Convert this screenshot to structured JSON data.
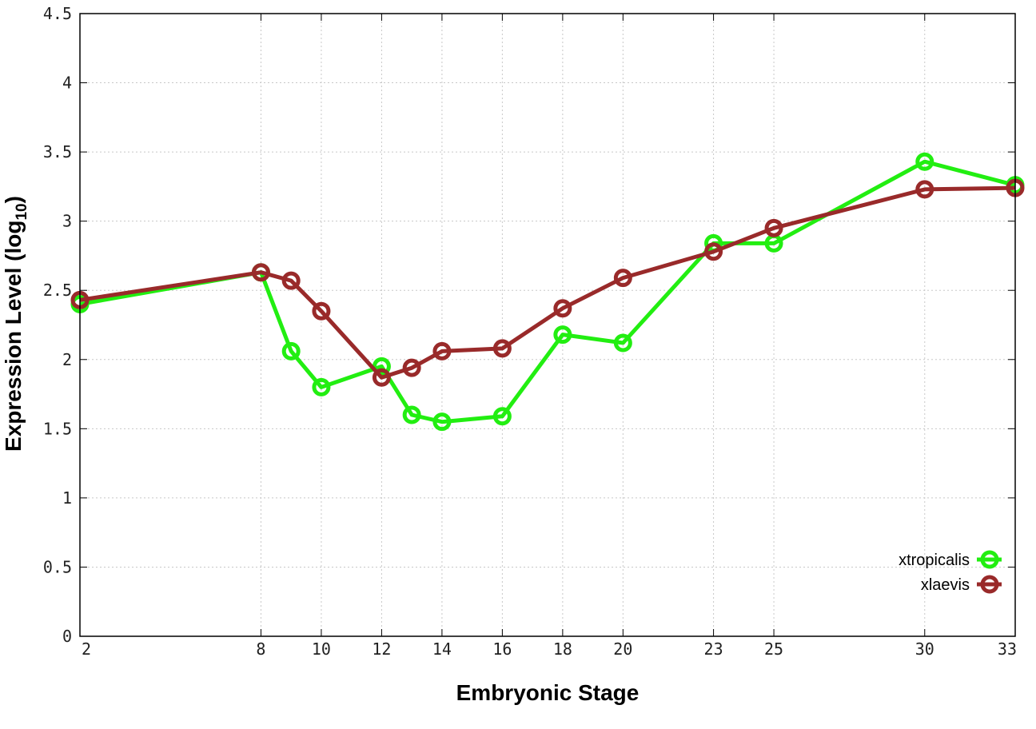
{
  "chart_data": {
    "type": "line",
    "title": "",
    "xlabel": "Embryonic Stage",
    "ylabel": {
      "text": "Expression Level (log",
      "subscript": "10",
      "suffix": ")"
    },
    "x_ticks": [
      "2",
      "8",
      "10",
      "12",
      "14",
      "16",
      "18",
      "20",
      "23",
      "25",
      "30",
      "33"
    ],
    "y_ticks": [
      "0",
      "0.5",
      "1",
      "1.5",
      "2",
      "2.5",
      "3",
      "3.5",
      "4",
      "4.5"
    ],
    "xlim": [
      2,
      33
    ],
    "ylim": [
      0,
      4.5
    ],
    "grid": true,
    "legend_position": "bottom-right",
    "x": [
      2,
      8,
      9,
      10,
      12,
      13,
      14,
      16,
      18,
      20,
      23,
      25,
      30,
      33
    ],
    "series": [
      {
        "name": "xtropicalis",
        "color": "#22ee11",
        "values": [
          2.4,
          2.63,
          2.06,
          1.8,
          1.95,
          1.6,
          1.55,
          1.59,
          2.18,
          2.12,
          2.84,
          2.84,
          3.43,
          3.26
        ]
      },
      {
        "name": "xlaevis",
        "color": "#992a2a",
        "values": [
          2.43,
          2.63,
          2.57,
          2.35,
          1.87,
          1.94,
          2.06,
          2.08,
          2.37,
          2.59,
          2.78,
          2.95,
          3.23,
          3.24
        ]
      }
    ]
  }
}
